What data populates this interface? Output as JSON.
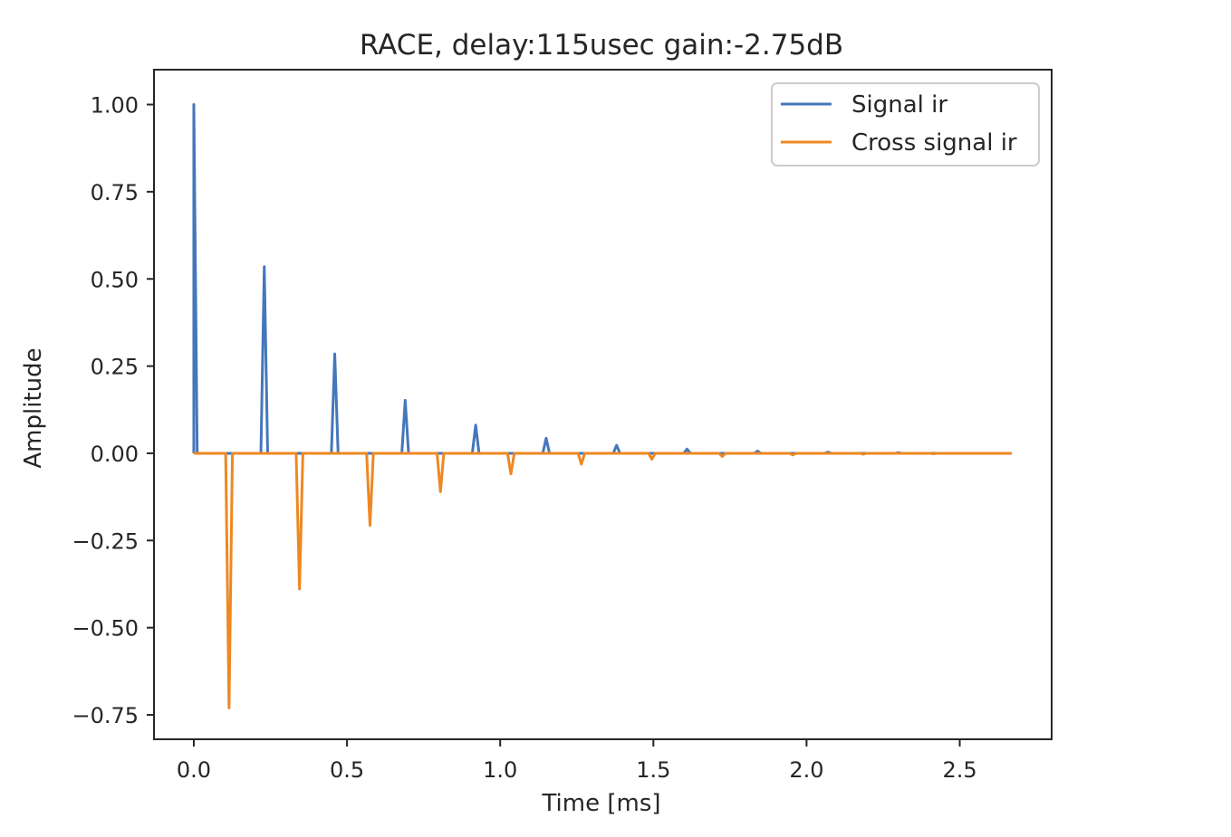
{
  "chart_data": {
    "type": "line",
    "title": "RACE,  delay:115usec  gain:-2.75dB",
    "xlabel": "Time [ms]",
    "ylabel": "Amplitude",
    "xlim": [
      -0.13,
      2.8
    ],
    "ylim": [
      -0.82,
      1.1
    ],
    "xticks": [
      0.0,
      0.5,
      1.0,
      1.5,
      2.0,
      2.5
    ],
    "xtick_labels": [
      "0.0",
      "0.5",
      "1.0",
      "1.5",
      "2.0",
      "2.5"
    ],
    "yticks": [
      1.0,
      0.75,
      0.5,
      0.25,
      0.0,
      -0.25,
      -0.5,
      -0.75
    ],
    "ytick_labels": [
      "1.00",
      "0.75",
      "0.50",
      "0.25",
      "0.00",
      "−0.25",
      "−0.50",
      "−0.75"
    ],
    "grid": false,
    "legend": "upper right",
    "x_end": 2.67,
    "pulse_halfwidth_ms": 0.011,
    "series": [
      {
        "name": "Signal ir",
        "color": "#4477bb",
        "pulses": [
          {
            "t": 0.0,
            "amp": 1.0
          },
          {
            "t": 0.23,
            "amp": 0.535
          },
          {
            "t": 0.46,
            "amp": 0.285
          },
          {
            "t": 0.69,
            "amp": 0.152
          },
          {
            "t": 0.92,
            "amp": 0.081
          },
          {
            "t": 1.15,
            "amp": 0.043
          },
          {
            "t": 1.38,
            "amp": 0.023
          },
          {
            "t": 1.61,
            "amp": 0.012
          },
          {
            "t": 1.84,
            "amp": 0.0065
          },
          {
            "t": 2.07,
            "amp": 0.0035
          },
          {
            "t": 2.3,
            "amp": 0.0018
          }
        ]
      },
      {
        "name": "Cross signal ir",
        "color": "#ee8822",
        "pulses": [
          {
            "t": 0.115,
            "amp": -0.73
          },
          {
            "t": 0.345,
            "amp": -0.389
          },
          {
            "t": 0.575,
            "amp": -0.207
          },
          {
            "t": 0.805,
            "amp": -0.11
          },
          {
            "t": 1.035,
            "amp": -0.059
          },
          {
            "t": 1.265,
            "amp": -0.031
          },
          {
            "t": 1.495,
            "amp": -0.017
          },
          {
            "t": 1.725,
            "amp": -0.009
          },
          {
            "t": 1.955,
            "amp": -0.0048
          },
          {
            "t": 2.185,
            "amp": -0.0026
          },
          {
            "t": 2.415,
            "amp": -0.0014
          }
        ]
      }
    ]
  }
}
